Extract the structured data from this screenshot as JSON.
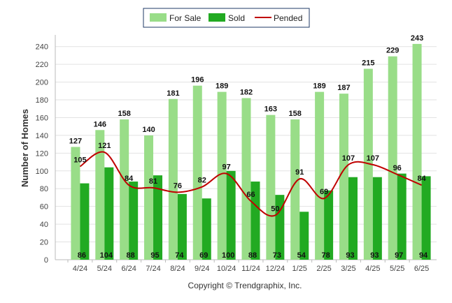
{
  "chart_data": {
    "type": "bar",
    "categories": [
      "4/24",
      "5/24",
      "6/24",
      "7/24",
      "8/24",
      "9/24",
      "10/24",
      "11/24",
      "12/24",
      "1/25",
      "2/25",
      "3/25",
      "4/25",
      "5/25",
      "6/25"
    ],
    "series": [
      {
        "name": "For Sale",
        "type": "bar",
        "color": "#99dd88",
        "values": [
          127,
          146,
          158,
          140,
          181,
          196,
          189,
          182,
          163,
          158,
          189,
          187,
          215,
          229,
          243
        ]
      },
      {
        "name": "Sold",
        "type": "bar",
        "color": "#22aa22",
        "values": [
          86,
          104,
          88,
          95,
          74,
          69,
          100,
          88,
          73,
          54,
          78,
          93,
          93,
          97,
          94
        ]
      },
      {
        "name": "Pended",
        "type": "line",
        "color": "#c00000",
        "values": [
          105,
          121,
          84,
          81,
          76,
          82,
          97,
          66,
          50,
          91,
          69,
          107,
          107,
          96,
          84
        ]
      }
    ],
    "ylabel": "Number of Homes",
    "xlabel": "",
    "ylim": [
      0,
      250
    ],
    "yticks": [
      0,
      20,
      40,
      60,
      80,
      100,
      120,
      140,
      160,
      180,
      200,
      220,
      240
    ],
    "grid": true,
    "legend": "top-center"
  },
  "footer": "Copyright © Trendgraphix, Inc."
}
